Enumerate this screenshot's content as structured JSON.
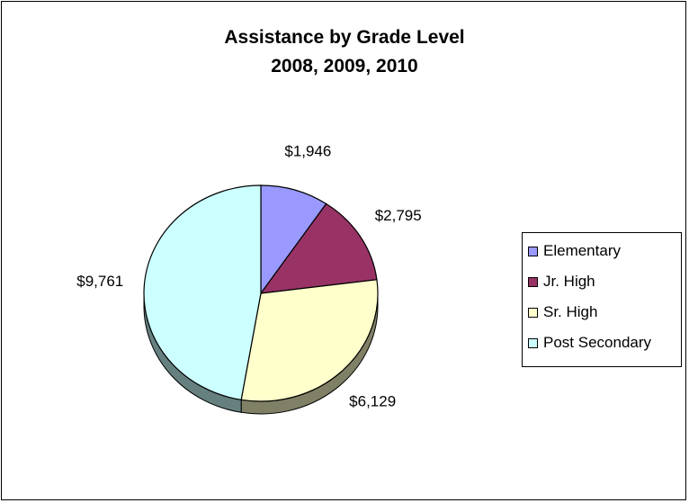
{
  "chart_data": {
    "type": "pie",
    "title": "Assistance by Grade Level",
    "subtitle": "2008, 2009, 2010",
    "labels": [
      "Elementary",
      "Jr. High",
      "Sr. High",
      "Post Secondary"
    ],
    "values": [
      1946,
      2795,
      6129,
      9761
    ],
    "data_labels": [
      "$1,946",
      "$2,795",
      "$6,129",
      "$9,761"
    ],
    "colors": [
      "#9999ff",
      "#993366",
      "#ffffcc",
      "#ccffff"
    ],
    "legend_position": "right"
  }
}
